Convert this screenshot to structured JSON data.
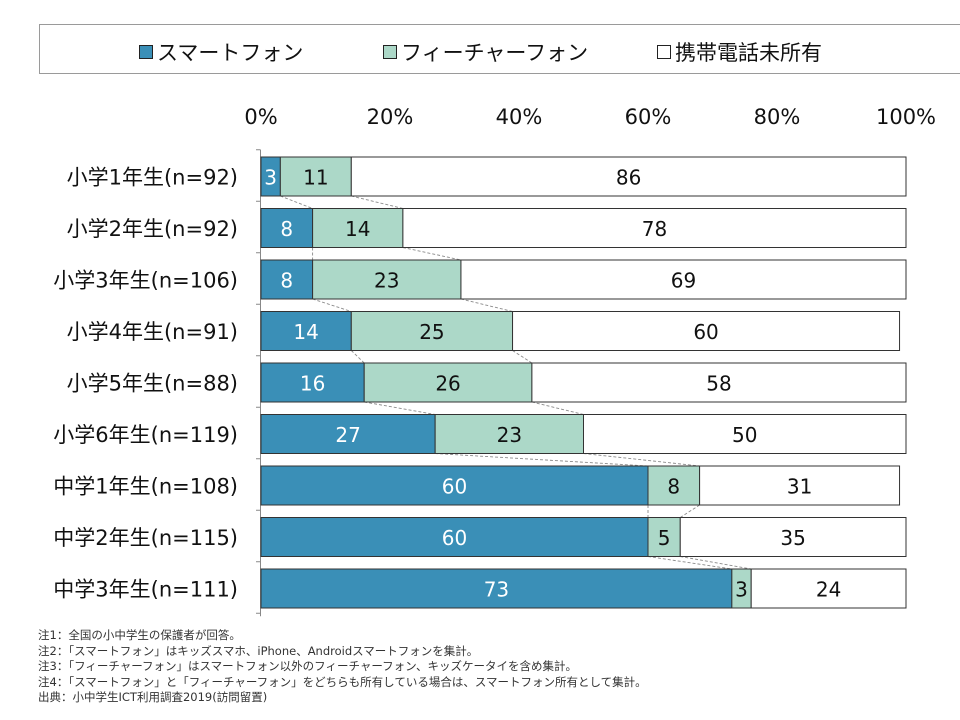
{
  "legend": {
    "items": [
      {
        "label": "スマートフォン",
        "color": "#3a8fb7"
      },
      {
        "label": "フィーチャーフォン",
        "color": "#acd8c8"
      },
      {
        "label": "携帯電話未所有",
        "color": "#ffffff"
      }
    ]
  },
  "chart_data": {
    "type": "bar",
    "orientation": "horizontal",
    "stacked": true,
    "xlim": [
      0,
      100
    ],
    "x_ticks": [
      "0%",
      "20%",
      "40%",
      "60%",
      "80%",
      "100%"
    ],
    "categories": [
      "小学1年生(n=92)",
      "小学2年生(n=92)",
      "小学3年生(n=106)",
      "小学4年生(n=91)",
      "小学5年生(n=88)",
      "小学6年生(n=119)",
      "中学1年生(n=108)",
      "中学2年生(n=115)",
      "中学3年生(n=111)"
    ],
    "series": [
      {
        "name": "スマートフォン",
        "color": "#3a8fb7",
        "values": [
          3,
          8,
          8,
          14,
          16,
          27,
          60,
          60,
          73
        ]
      },
      {
        "name": "フィーチャーフォン",
        "color": "#acd8c8",
        "values": [
          11,
          14,
          23,
          25,
          26,
          23,
          8,
          5,
          3
        ]
      },
      {
        "name": "携帯電話未所有",
        "color": "#ffffff",
        "values": [
          86,
          78,
          69,
          60,
          58,
          50,
          31,
          35,
          24
        ]
      }
    ],
    "series_lines": true,
    "legend_position": "top"
  },
  "notes": [
    "注1：全国の小中学生の保護者が回答。",
    "注2：「スマートフォン」はキッズスマホ、iPhone、Androidスマートフォンを集計。",
    "注3：「フィーチャーフォン」はスマートフォン以外のフィーチャーフォン、キッズケータイを含め集計。",
    "注4：「スマートフォン」と「フィーチャーフォン」をどちらも所有している場合は、スマートフォン所有として集計。",
    "出典：小中学生ICT利用調査2019(訪問留置)"
  ]
}
